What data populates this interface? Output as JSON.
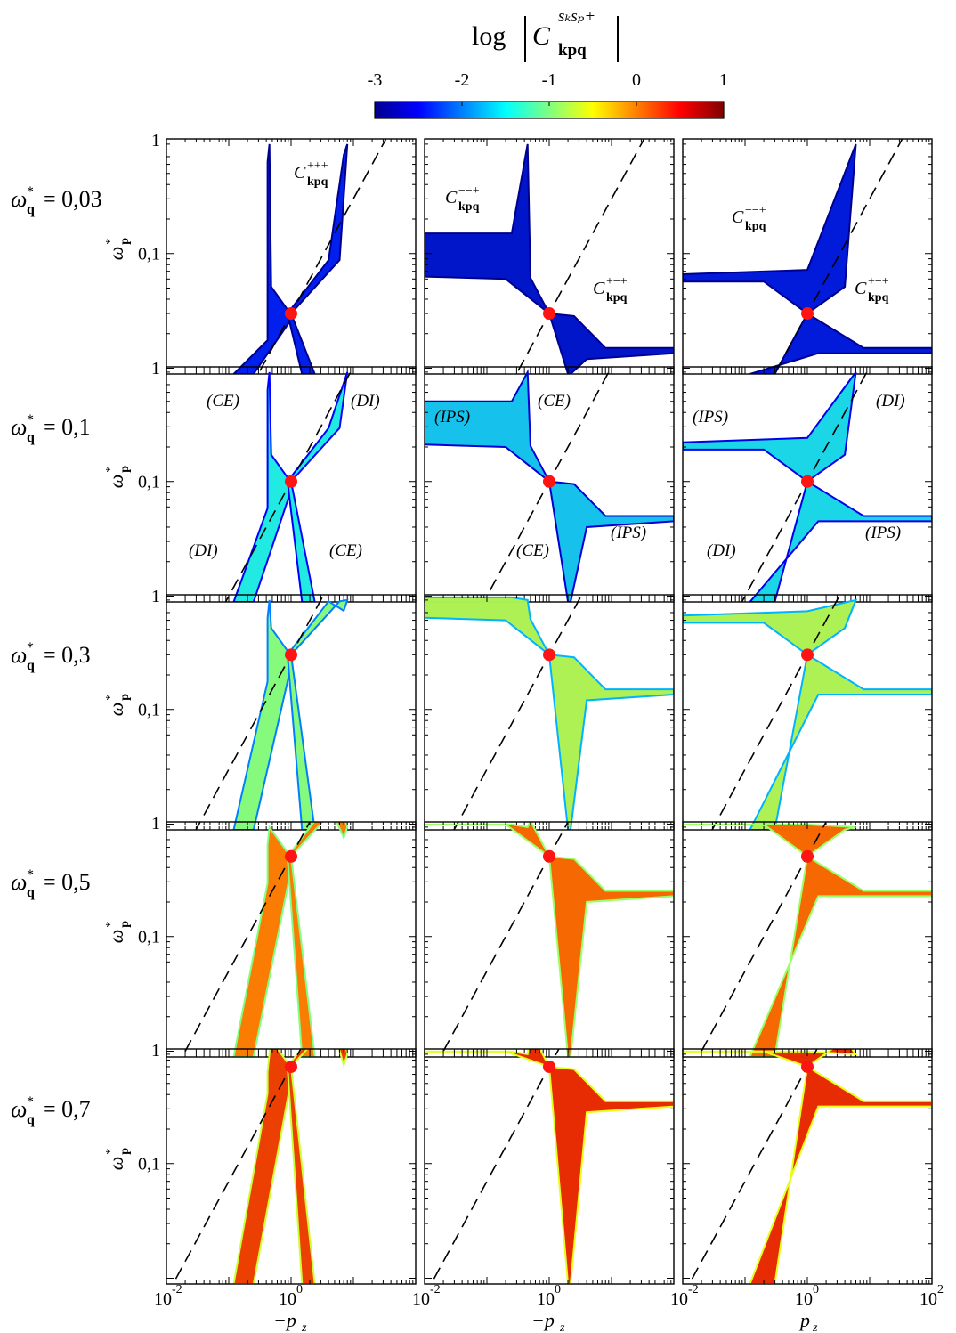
{
  "colorbar": {
    "title": "log |C^{s_k s_p +}_kpq|",
    "title_parts": {
      "log": "log",
      "C": "C",
      "sup": "sₖsₚ+",
      "sub": "kpq"
    },
    "ticks": [
      "-3",
      "-2",
      "-1",
      "0",
      "1"
    ],
    "range": [
      -3,
      1
    ],
    "colormap": "jet"
  },
  "row_labels": [
    {
      "sym": "ω",
      "sub": "q",
      "sup": "*",
      "value": "= 0,03"
    },
    {
      "sym": "ω",
      "sub": "q",
      "sup": "*",
      "value": "= 0,1"
    },
    {
      "sym": "ω",
      "sub": "q",
      "sup": "*",
      "value": "= 0,3"
    },
    {
      "sym": "ω",
      "sub": "q",
      "sup": "*",
      "value": "= 0,5"
    },
    {
      "sym": "ω",
      "sub": "q",
      "sup": "*",
      "value": "= 0,7"
    }
  ],
  "y_axis": {
    "label_sym": "ω",
    "label_sub": "p",
    "label_sup": "*",
    "tick_labels": [
      "1",
      "0,1"
    ],
    "scale": "log"
  },
  "x_axis": {
    "scale": "log",
    "tick_labels": [
      {
        "base": "10",
        "exp": "-2"
      },
      {
        "base": "10",
        "exp": "0"
      },
      {
        "base": "10",
        "exp": "-2"
      },
      {
        "base": "10",
        "exp": "0"
      },
      {
        "base": "10",
        "exp": "-2"
      },
      {
        "base": "10",
        "exp": "0"
      },
      {
        "base": "10",
        "exp": "2"
      }
    ],
    "labels": [
      "−p_z",
      "−p_z",
      "p_z"
    ],
    "label_parts": [
      {
        "sign": "−",
        "var": "p",
        "sub": "z"
      },
      {
        "sign": "−",
        "var": "p",
        "sub": "z"
      },
      {
        "sign": "",
        "var": "p",
        "sub": "z"
      }
    ]
  },
  "annotations": {
    "ppp": {
      "C": "C",
      "sup": "+++",
      "sub": "kpq"
    },
    "mmp": {
      "C": "C",
      "sup": "−−+",
      "sub": "kpq"
    },
    "pmp": {
      "C": "C",
      "sup": "+−+",
      "sub": "kpq"
    },
    "ce": "(CE)",
    "di": "(DI)",
    "ips": "(IPS)"
  },
  "colors": {
    "marker": "#ff1414",
    "dashed": "#000000"
  },
  "chart_data": {
    "type": "heatmap",
    "title": "",
    "xscale": "log",
    "yscale": "log",
    "xlim": [
      0.01,
      100
    ],
    "ylim": [
      0.0089,
      1
    ],
    "columns": [
      "−p_z",
      "−p_z",
      "p_z"
    ],
    "rows_wq": [
      0.03,
      0.1,
      0.3,
      0.5,
      0.7
    ],
    "marker_points": [
      {
        "x": 1,
        "y": 0.03
      },
      {
        "x": 1,
        "y": 0.1
      },
      {
        "x": 1,
        "y": 0.3
      },
      {
        "x": 1,
        "y": 0.5
      },
      {
        "x": 1,
        "y": 0.7
      }
    ],
    "dashed_line": "omega_p = omega_q * |p_z| (slope 1 in log-log)",
    "panel_levels": [
      [
        -2.6,
        -2.8,
        -2.7
      ],
      [
        -1.6,
        -1.8,
        -1.7
      ],
      [
        -1.1,
        -0.9,
        -0.9
      ],
      [
        -0.1,
        0.0,
        0.0
      ],
      [
        0.2,
        0.3,
        0.3
      ]
    ]
  }
}
